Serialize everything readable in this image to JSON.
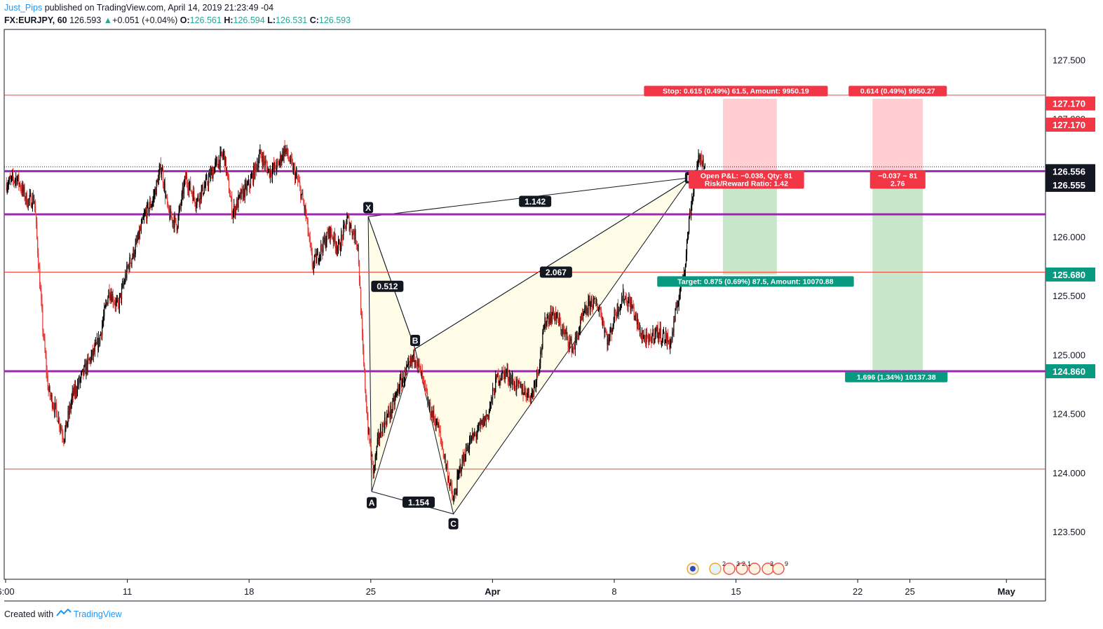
{
  "header": {
    "author": "Just_Pips",
    "published": "published on TradingView.com, April 14, 2019 21:23:49 -04",
    "symbol": "FX:EURJPY, 60",
    "last": "126.593",
    "change": "+0.051 (+0.04%)",
    "o_label": "O:",
    "o": "126.561",
    "h_label": "H:",
    "h": "126.594",
    "l_label": "L:",
    "l": "126.531",
    "c_label": "C:",
    "c": "126.593"
  },
  "footer": {
    "created": "Created with",
    "brand": "TradingView"
  },
  "colors": {
    "bull": "#26a69a",
    "bear": "#ef5350",
    "candle": "#000000",
    "candle_red": "#e53935",
    "support": "#9c27b0",
    "red_line": "#f44336",
    "stop_zone": "#ffcdd2",
    "target_zone": "#c8e6c9",
    "pattern_fill": "#fffde7",
    "badge_red": "#f23645",
    "badge_green": "#089981",
    "label_bg": "#131722"
  },
  "chart_data": {
    "type": "candlestick",
    "title": "FX:EURJPY, 60",
    "ylim": [
      123.05,
      127.75
    ],
    "y_ticks": [
      "127.500",
      "127.000",
      "126.500",
      "126.000",
      "125.500",
      "125.000",
      "124.500",
      "124.000",
      "123.500"
    ],
    "x_ticks": [
      {
        "label": "6:00",
        "day": 3.95
      },
      {
        "label": "11",
        "day": 10.95
      },
      {
        "label": "18",
        "day": 17.95
      },
      {
        "label": "25",
        "day": 24.95
      },
      {
        "label": "Apr",
        "day": 31.95
      },
      {
        "label": "8",
        "day": 38.95
      },
      {
        "label": "15",
        "day": 45.95
      },
      {
        "label": "22",
        "day": 52.95
      },
      {
        "label": "25",
        "day": 55.95
      },
      {
        "label": "May",
        "day": 61.5
      }
    ],
    "horizontal_lines": [
      {
        "kind": "red",
        "price": 127.2
      },
      {
        "kind": "support",
        "price": 126.556
      },
      {
        "kind": "support",
        "price": 126.19
      },
      {
        "kind": "red",
        "price": 125.7
      },
      {
        "kind": "support",
        "price": 124.86
      },
      {
        "kind": "red",
        "price": 124.03
      }
    ],
    "price_axis_labels": [
      {
        "text": "127.170",
        "price": 127.13,
        "color": "#f23645"
      },
      {
        "text": "127.170",
        "price": 126.95,
        "color": "#f23645"
      },
      {
        "text": "126.556",
        "price": 126.556,
        "color": "#131722"
      },
      {
        "text": "126.555",
        "price": 126.44,
        "color": "#131722"
      },
      {
        "text": "125.680",
        "price": 125.68,
        "color": "#089981"
      },
      {
        "text": "124.860",
        "price": 124.86,
        "color": "#089981"
      }
    ],
    "pattern": {
      "points": [
        {
          "label": "X",
          "day": 24.8,
          "price": 126.17
        },
        {
          "label": "A",
          "day": 25.0,
          "price": 123.84
        },
        {
          "label": "B",
          "day": 27.5,
          "price": 125.05
        },
        {
          "label": "C",
          "day": 29.7,
          "price": 123.65
        },
        {
          "label": "D",
          "day": 43.3,
          "price": 126.5
        }
      ],
      "ratios": [
        {
          "text": "0.512",
          "day": 25.9,
          "price": 125.58
        },
        {
          "text": "1.154",
          "day": 27.7,
          "price": 123.75
        },
        {
          "text": "2.067",
          "day": 35.6,
          "price": 125.7
        },
        {
          "text": "1.142",
          "day": 34.4,
          "price": 126.3
        }
      ]
    },
    "positions": [
      {
        "day_start": 45.2,
        "day_end": 48.3,
        "entry": 126.55,
        "stop": 127.17,
        "target": 125.68,
        "stop_label": "Stop: 0.615 (0.49%) 61.5, Amount: 9950.19",
        "mid_label_1": "Open P&L: −0.038, Qty: 81",
        "mid_label_2": "Risk/Reward Ratio: 1.42",
        "target_label": "Target: 0.875 (0.69%) 87.5, Amount: 10070.88"
      },
      {
        "day_start": 53.8,
        "day_end": 56.7,
        "entry": 126.55,
        "stop": 127.17,
        "target": 124.87,
        "stop_label": "0.614 (0.49%) 9950.27",
        "mid_label_1": "−0.037 ~ 81",
        "mid_label_2": "2.76",
        "target_label": "1.696 (1.34%) 10137.38"
      }
    ],
    "series": [
      {
        "name": "EURJPY",
        "ohlc_keyframes": [
          [
            4.0,
            126.45
          ],
          [
            4.6,
            126.5
          ],
          [
            5.2,
            126.3
          ],
          [
            5.6,
            126.32
          ],
          [
            6.1,
            125.2
          ],
          [
            6.4,
            124.7
          ],
          [
            6.9,
            124.5
          ],
          [
            7.3,
            124.3
          ],
          [
            7.8,
            124.65
          ],
          [
            8.6,
            124.9
          ],
          [
            9.3,
            125.1
          ],
          [
            9.9,
            125.55
          ],
          [
            10.4,
            125.4
          ],
          [
            11.0,
            125.75
          ],
          [
            11.4,
            125.9
          ],
          [
            12.0,
            126.2
          ],
          [
            12.4,
            126.3
          ],
          [
            12.9,
            126.6
          ],
          [
            13.3,
            126.2
          ],
          [
            13.8,
            126.1
          ],
          [
            14.3,
            126.5
          ],
          [
            14.9,
            126.3
          ],
          [
            15.5,
            126.45
          ],
          [
            16.0,
            126.6
          ],
          [
            16.5,
            126.7
          ],
          [
            17.0,
            126.2
          ],
          [
            17.5,
            126.35
          ],
          [
            18.0,
            126.45
          ],
          [
            18.6,
            126.7
          ],
          [
            19.1,
            126.55
          ],
          [
            19.6,
            126.6
          ],
          [
            20.0,
            126.75
          ],
          [
            20.4,
            126.6
          ],
          [
            20.8,
            126.45
          ],
          [
            21.2,
            126.2
          ],
          [
            21.6,
            125.75
          ],
          [
            22.1,
            125.9
          ],
          [
            22.6,
            126.05
          ],
          [
            23.1,
            125.9
          ],
          [
            23.6,
            126.15
          ],
          [
            24.2,
            125.95
          ],
          [
            24.5,
            125.0
          ],
          [
            24.8,
            124.35
          ],
          [
            25.1,
            124.0
          ],
          [
            25.4,
            124.3
          ],
          [
            25.8,
            124.45
          ],
          [
            26.2,
            124.55
          ],
          [
            26.6,
            124.75
          ],
          [
            27.0,
            124.85
          ],
          [
            27.5,
            125.0
          ],
          [
            27.9,
            124.8
          ],
          [
            28.3,
            124.55
          ],
          [
            28.8,
            124.4
          ],
          [
            29.3,
            124.05
          ],
          [
            29.7,
            123.75
          ],
          [
            30.1,
            124.05
          ],
          [
            30.6,
            124.25
          ],
          [
            31.1,
            124.35
          ],
          [
            31.7,
            124.5
          ],
          [
            32.2,
            124.8
          ],
          [
            32.7,
            124.85
          ],
          [
            33.2,
            124.75
          ],
          [
            33.7,
            124.7
          ],
          [
            34.2,
            124.65
          ],
          [
            34.6,
            124.9
          ],
          [
            35.0,
            125.3
          ],
          [
            35.5,
            125.35
          ],
          [
            36.0,
            125.2
          ],
          [
            36.6,
            125.05
          ],
          [
            37.1,
            125.3
          ],
          [
            37.6,
            125.45
          ],
          [
            38.1,
            125.4
          ],
          [
            38.6,
            125.1
          ],
          [
            39.0,
            125.35
          ],
          [
            39.5,
            125.5
          ],
          [
            40.0,
            125.4
          ],
          [
            40.4,
            125.2
          ],
          [
            40.9,
            125.1
          ],
          [
            41.3,
            125.2
          ],
          [
            41.8,
            125.15
          ],
          [
            42.2,
            125.1
          ],
          [
            42.6,
            125.45
          ],
          [
            43.0,
            125.75
          ],
          [
            43.3,
            126.2
          ],
          [
            43.6,
            126.5
          ],
          [
            43.9,
            126.7
          ],
          [
            44.2,
            126.56
          ]
        ]
      }
    ]
  },
  "watermark_icons": [
    "event-icon",
    "event-icon",
    "event-icon",
    "event-icon",
    "event-icon",
    "event-icon"
  ],
  "event_counts": [
    "2",
    "3",
    "2",
    "1",
    "3",
    "9"
  ]
}
